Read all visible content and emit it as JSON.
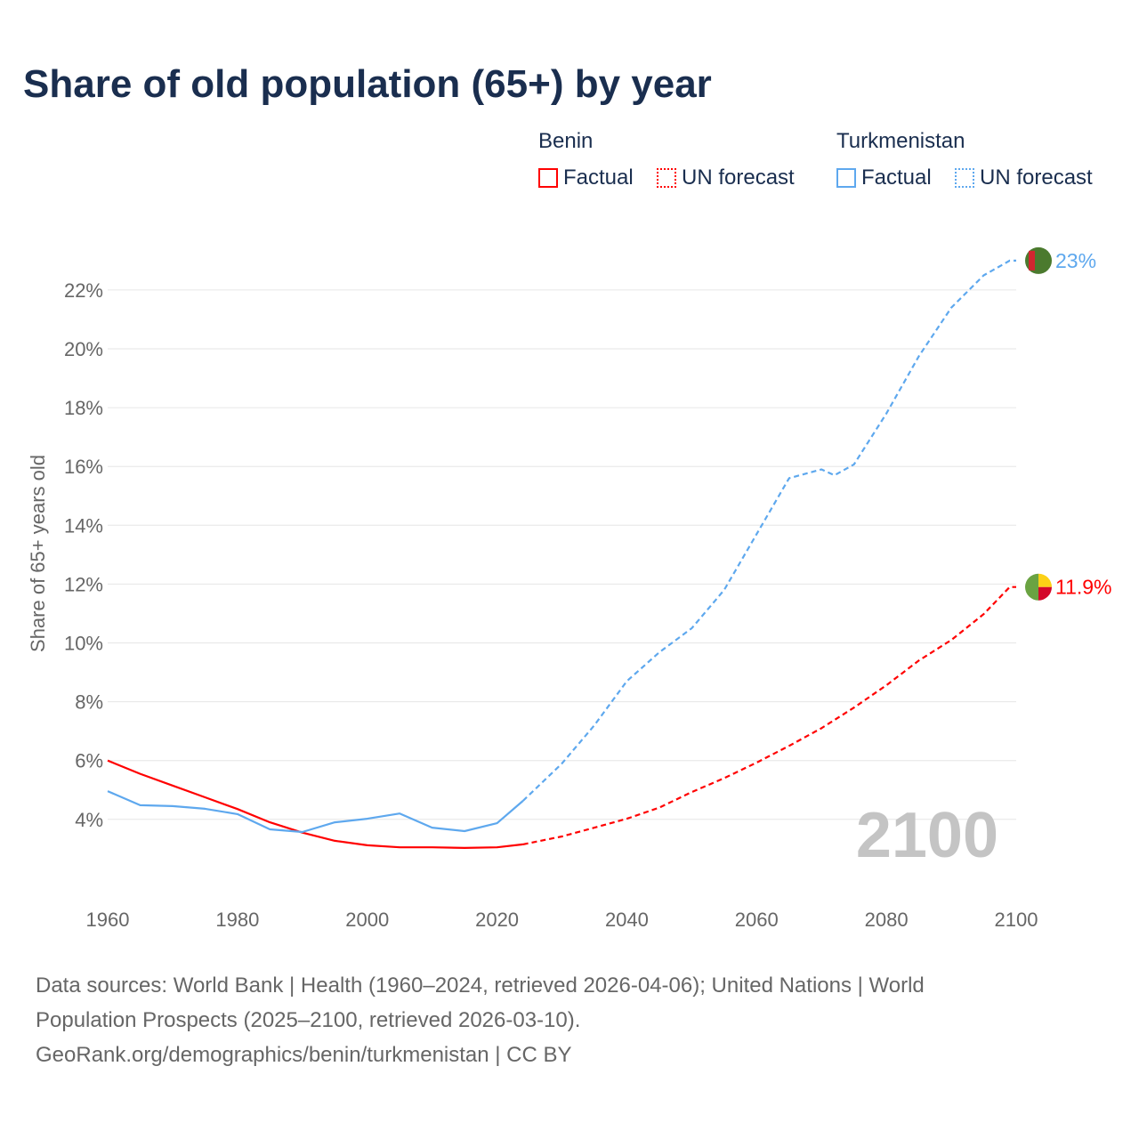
{
  "title": "Share of old population (65+) by year",
  "legend": {
    "groups": [
      {
        "name": "Benin",
        "factual": "Factual",
        "forecast": "UN forecast",
        "color": "#ff0000"
      },
      {
        "name": "Turkmenistan",
        "factual": "Factual",
        "forecast": "UN forecast",
        "color": "#5ea8ee"
      }
    ]
  },
  "footer": {
    "line1": "Data sources: World Bank | Health (1960–2024, retrieved 2026-04-06); United Nations | World",
    "line2": "Population Prospects (2025–2100, retrieved 2026-03-10).",
    "line3": "GeoRank.org/demographics/benin/turkmenistan | CC BY"
  },
  "chart_data": {
    "type": "line",
    "title": "Share of old population (65+) by year",
    "xlabel": "",
    "ylabel": "Share of 65+ years old",
    "xlim": [
      1960,
      2100
    ],
    "ylim": [
      0,
      23.5
    ],
    "xticks": [
      "1960",
      "1980",
      "2000",
      "2020",
      "2040",
      "2060",
      "2080",
      "2100"
    ],
    "yticks": [
      "4%",
      "6%",
      "8%",
      "10%",
      "12%",
      "14%",
      "16%",
      "18%",
      "20%",
      "22%"
    ],
    "year_watermark": "2100",
    "series": [
      {
        "name": "Benin",
        "color": "#ff0000",
        "end_label": "11.9%",
        "factual": {
          "x": [
            1960,
            1965,
            1970,
            1975,
            1980,
            1985,
            1990,
            1995,
            2000,
            2005,
            2010,
            2015,
            2020,
            2024
          ],
          "y": [
            6.0,
            5.55,
            5.15,
            4.75,
            4.35,
            3.9,
            3.55,
            3.27,
            3.12,
            3.05,
            3.05,
            3.03,
            3.05,
            3.15
          ]
        },
        "forecast": {
          "x": [
            2024,
            2030,
            2035,
            2040,
            2045,
            2050,
            2055,
            2060,
            2065,
            2070,
            2075,
            2080,
            2085,
            2090,
            2095,
            2099,
            2100
          ],
          "y": [
            3.15,
            3.42,
            3.72,
            4.02,
            4.4,
            4.93,
            5.4,
            5.93,
            6.5,
            7.1,
            7.8,
            8.56,
            9.4,
            10.1,
            10.98,
            11.9,
            11.9
          ]
        }
      },
      {
        "name": "Turkmenistan",
        "color": "#5ea8ee",
        "end_label": "23%",
        "factual": {
          "x": [
            1960,
            1965,
            1970,
            1975,
            1980,
            1985,
            1990,
            1995,
            2000,
            2005,
            2010,
            2015,
            2020,
            2024
          ],
          "y": [
            4.96,
            4.48,
            4.45,
            4.36,
            4.18,
            3.66,
            3.57,
            3.9,
            4.02,
            4.2,
            3.72,
            3.6,
            3.87,
            4.63
          ]
        },
        "forecast": {
          "x": [
            2024,
            2030,
            2035,
            2040,
            2045,
            2050,
            2055,
            2060,
            2065,
            2070,
            2072,
            2075,
            2080,
            2085,
            2090,
            2095,
            2099,
            2100
          ],
          "y": [
            4.63,
            5.9,
            7.2,
            8.7,
            9.68,
            10.5,
            11.8,
            13.7,
            15.6,
            15.9,
            15.7,
            16.07,
            17.8,
            19.75,
            21.4,
            22.5,
            23.0,
            23.0
          ]
        }
      }
    ]
  }
}
